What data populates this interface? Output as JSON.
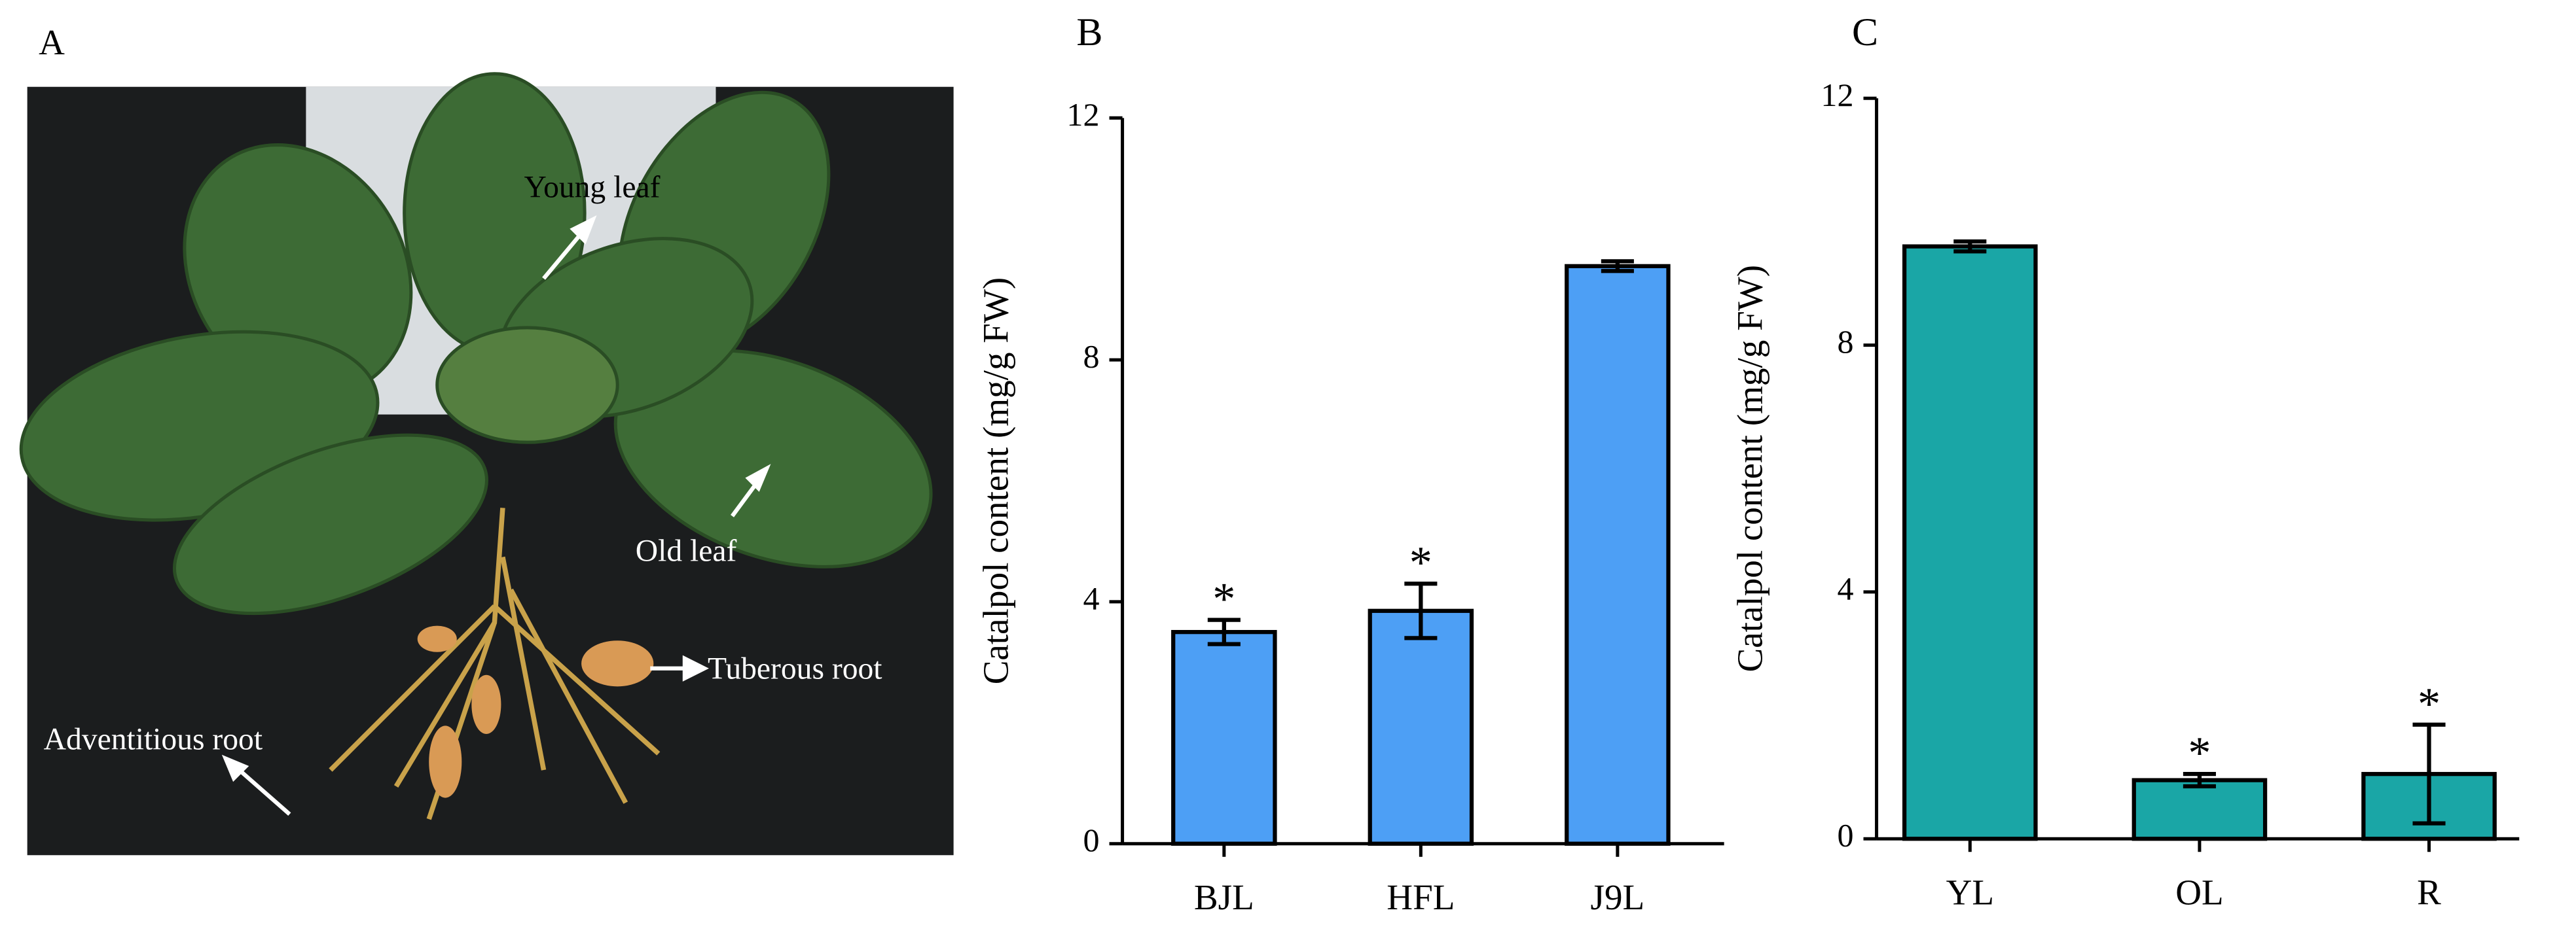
{
  "photo": {
    "label": "A",
    "annotations": [
      "Young leaf",
      "Old leaf",
      "Tuberous root",
      "Adventitious root"
    ]
  },
  "chart_data": [
    {
      "type": "bar",
      "label": "B",
      "ylabel": "Catalpol content (mg/g FW)",
      "categories": [
        "BJL",
        "HFL",
        "J9L"
      ],
      "values": [
        3.5,
        3.85,
        9.55
      ],
      "errors": [
        0.2,
        0.45,
        0.08
      ],
      "significance": [
        "*",
        "*",
        null
      ],
      "color": "#4d9ff5",
      "ylim": [
        0,
        12
      ],
      "yticks": [
        0,
        4,
        8,
        12
      ]
    },
    {
      "type": "bar",
      "label": "C",
      "ylabel": "Catalpol content (mg/g FW)",
      "categories": [
        "YL",
        "OL",
        "R"
      ],
      "values": [
        9.6,
        0.95,
        1.05
      ],
      "errors": [
        0.08,
        0.1,
        0.8
      ],
      "significance": [
        null,
        "*",
        "*"
      ],
      "color": "#1aa6a6",
      "ylim": [
        0,
        12
      ],
      "yticks": [
        0,
        4,
        8,
        12
      ]
    }
  ]
}
